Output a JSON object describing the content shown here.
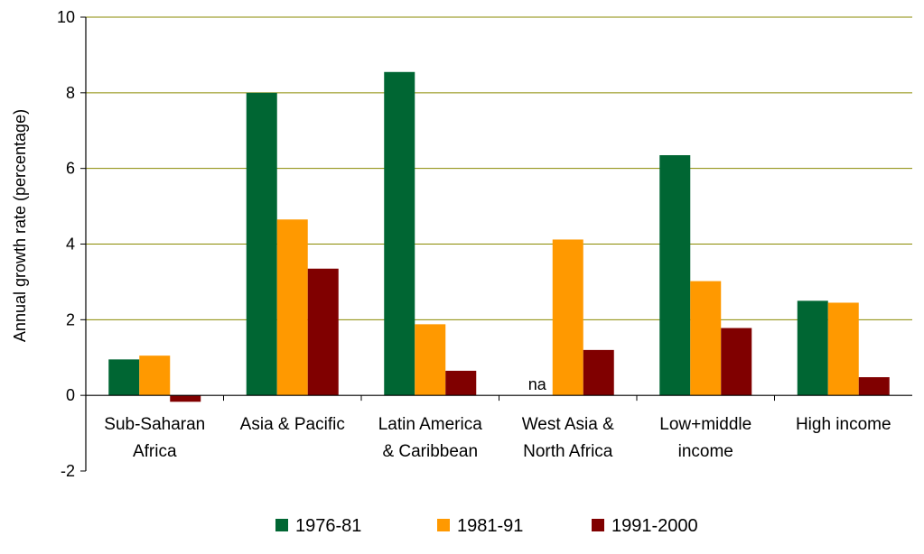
{
  "chart_data": {
    "type": "bar",
    "ylabel": "Annual growth rate (percentage)",
    "ylim": [
      -2,
      10
    ],
    "yticks": [
      -2,
      0,
      2,
      4,
      6,
      8,
      10
    ],
    "grid": true,
    "legend_position": "bottom",
    "categories": [
      [
        "Sub-Saharan",
        "Africa"
      ],
      [
        "Asia & Pacific"
      ],
      [
        "Latin America",
        "& Caribbean"
      ],
      [
        "West Asia &",
        "North Africa"
      ],
      [
        "Low+middle",
        "income"
      ],
      [
        "High income"
      ]
    ],
    "series": [
      {
        "name": "1976-81",
        "color": "#006633",
        "values": [
          0.95,
          8.0,
          8.55,
          null,
          6.35,
          2.5
        ]
      },
      {
        "name": "1981-91",
        "color": "#FF9900",
        "values": [
          1.05,
          4.65,
          1.88,
          4.12,
          3.02,
          2.45
        ]
      },
      {
        "name": "1991-2000",
        "color": "#800000",
        "values": [
          -0.17,
          3.35,
          0.65,
          1.2,
          1.78,
          0.48
        ]
      }
    ],
    "annotations": [
      {
        "category_index": 3,
        "series_index": 0,
        "text": "na"
      }
    ]
  }
}
